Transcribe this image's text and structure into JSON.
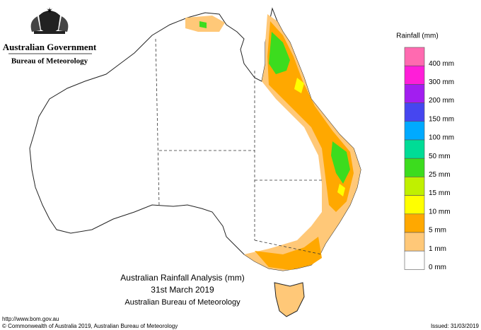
{
  "header": {
    "government": "Australian Government",
    "agency": "Bureau of Meteorology"
  },
  "legend": {
    "title": "Rainfall (mm)",
    "items": [
      {
        "label": "400 mm",
        "color": "#ff6ab0"
      },
      {
        "label": "300 mm",
        "color": "#ff1ed8"
      },
      {
        "label": "200 mm",
        "color": "#a21ef0"
      },
      {
        "label": "150 mm",
        "color": "#4646f0"
      },
      {
        "label": "100 mm",
        "color": "#00aaff"
      },
      {
        "label": "50 mm",
        "color": "#00dc96"
      },
      {
        "label": "25 mm",
        "color": "#3cdc1e"
      },
      {
        "label": "15 mm",
        "color": "#c0f000"
      },
      {
        "label": "10 mm",
        "color": "#ffff00"
      },
      {
        "label": "5 mm",
        "color": "#ffa800"
      },
      {
        "label": "1 mm",
        "color": "#ffc878"
      },
      {
        "label": "0 mm",
        "color": "#ffffff"
      }
    ]
  },
  "map": {
    "title": "Australian Rainfall Analysis (mm)",
    "date": "31st March 2019",
    "source": "Australian Bureau of Meteorology"
  },
  "footer": {
    "url": "http://www.bom.gov.au",
    "copyright": "© Commonwealth of Australia 2019, Australian Bureau of Meteorology",
    "issued": "Issued: 31/03/2019"
  }
}
